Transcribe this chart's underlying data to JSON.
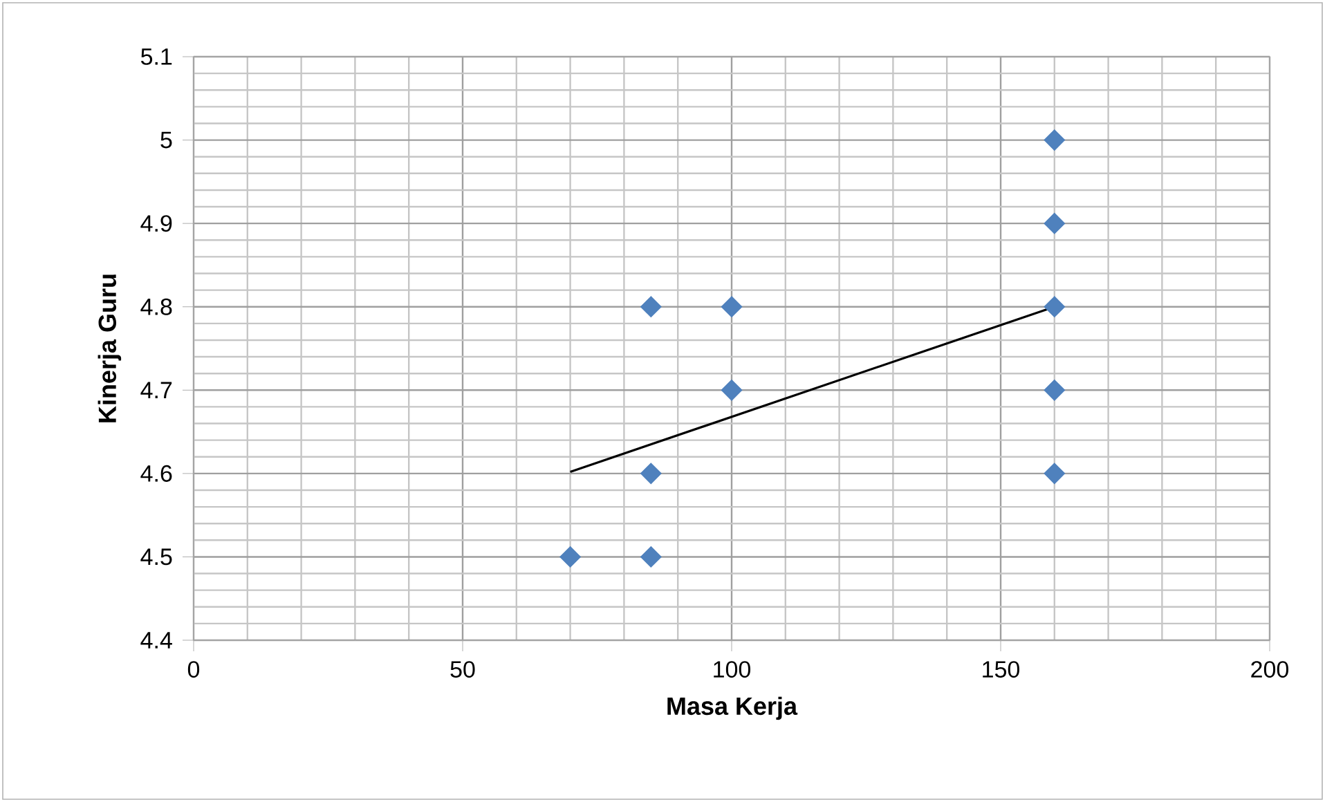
{
  "chart_data": {
    "type": "scatter",
    "xlabel": "Masa Kerja",
    "ylabel": "Kinerja Guru",
    "xlim": [
      0,
      200
    ],
    "xticks": [
      0,
      50,
      100,
      150,
      200
    ],
    "ylim": [
      4.4,
      5.1
    ],
    "yticks": [
      4.4,
      4.5,
      4.6,
      4.7,
      4.8,
      4.9,
      5,
      5.1
    ],
    "grid": true,
    "marker": "diamond",
    "series": [
      {
        "color": "#4f81bd",
        "x": [
          70,
          85,
          85,
          85,
          100,
          100,
          160,
          160,
          160,
          160,
          160
        ],
        "values": [
          4.5,
          4.5,
          4.6,
          4.8,
          4.8,
          4.7,
          5.0,
          4.9,
          4.8,
          4.7,
          4.6
        ]
      },
      {
        "type": "line",
        "color": "#000000",
        "marker": "none",
        "x": [
          70,
          160
        ],
        "values": [
          4.602,
          4.8
        ]
      }
    ]
  }
}
